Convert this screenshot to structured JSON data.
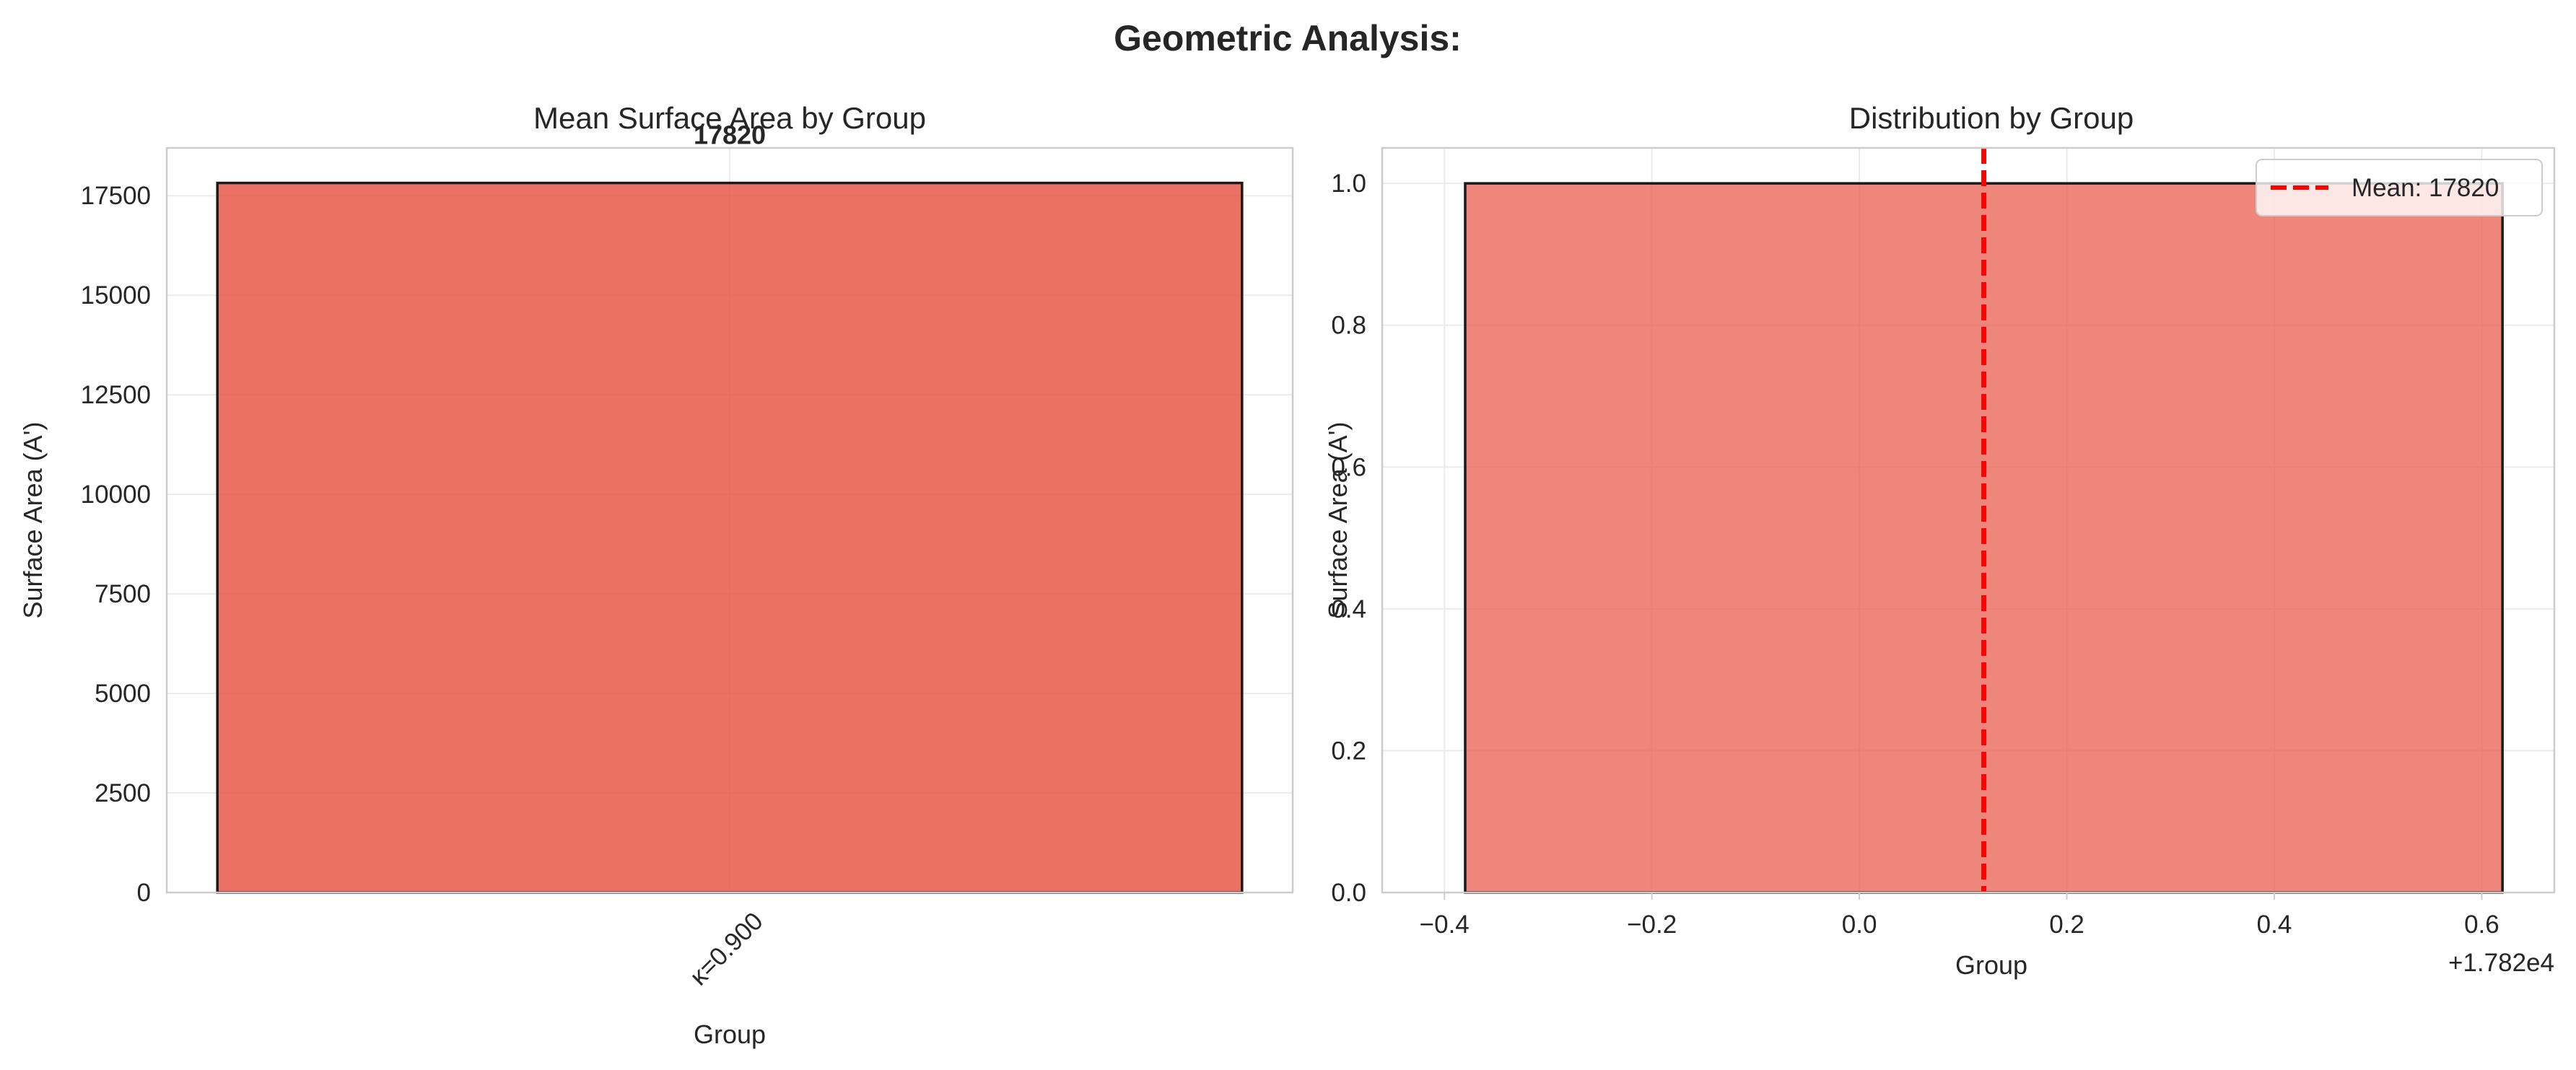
{
  "figure": {
    "title": "Geometric Analysis:"
  },
  "colors": {
    "bar": "#e8584a",
    "edge": "#1a1a1a",
    "mean_line": "#ff0000"
  },
  "chart_data": [
    {
      "type": "bar",
      "title": "Mean Surface Area by Group",
      "xlabel": "Group",
      "ylabel": "Surface Area (A')",
      "categories": [
        "κ=0.900"
      ],
      "values": [
        17820
      ],
      "data_labels": [
        "17820"
      ],
      "ylim": [
        0,
        18700
      ],
      "yticks": [
        0,
        2500,
        5000,
        7500,
        10000,
        12500,
        15000,
        17500
      ],
      "ytick_labels": [
        "0",
        "2500",
        "5000",
        "7500",
        "10000",
        "12500",
        "15000",
        "17500"
      ],
      "grid": true
    },
    {
      "type": "histogram",
      "title": "Distribution by Group",
      "xlabel": "Group",
      "ylabel": "Surface Area (A')",
      "bins": [
        {
          "start": -0.38,
          "end": 0.62,
          "count": 1.0
        }
      ],
      "mean_line": {
        "x": 0.12,
        "label": "Mean: 17820"
      },
      "xlim": [
        -0.46,
        0.67
      ],
      "ylim": [
        0,
        1.05
      ],
      "xticks": [
        -0.4,
        -0.2,
        0.0,
        0.2,
        0.4,
        0.6
      ],
      "xtick_labels": [
        "−0.4",
        "−0.2",
        "0.0",
        "0.2",
        "0.4",
        "0.6"
      ],
      "yticks": [
        0,
        0.2,
        0.4,
        0.6,
        0.8,
        1.0
      ],
      "ytick_labels": [
        "0.0",
        "0.2",
        "0.4",
        "0.6",
        "0.8",
        "1.0"
      ],
      "offset_text": "+1.782e4",
      "legend_position": "top-right",
      "grid": true
    }
  ]
}
